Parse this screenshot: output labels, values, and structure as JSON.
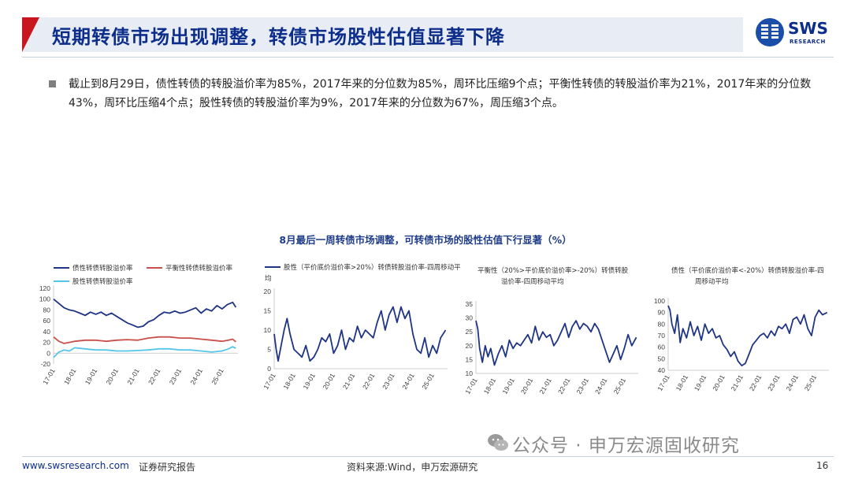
{
  "header": {
    "title": "短期转债市场出现调整，转债市场股性估值显著下降",
    "logo_text": "SWS",
    "logo_sub": "RESEARCH"
  },
  "bullet": {
    "text": "截止到8月29日，债性转债的转股溢价率为85%，2017年来的分位数为85%，周环比压缩9个点；平衡性转债的转股溢价率为21%，2017年来的分位数43%，周环比压缩4个点；股性转债的转股溢价率为9%，2017年来的分位数为67%，周压缩3个点。"
  },
  "chart_section_title": "8月最后一周转债市场调整，可转债市场的股性估值下行显著（%）",
  "colors": {
    "navy": "#1f3584",
    "red": "#c9504a",
    "cyan": "#55c6e8"
  },
  "chart_data": [
    {
      "type": "line",
      "title": "",
      "categories": [
        "17-01",
        "18-01",
        "19-01",
        "20-01",
        "21-01",
        "22-01",
        "23-01",
        "24-01",
        "25-01"
      ],
      "ylim": [
        -20,
        120
      ],
      "yticks": [
        -20,
        0,
        20,
        40,
        60,
        80,
        100,
        120
      ],
      "series": [
        {
          "name": "债性转债转股溢价率",
          "color": "#1f3584",
          "x": [
            2017.0,
            2017.25,
            2017.5,
            2017.75,
            2018.0,
            2018.25,
            2018.5,
            2018.75,
            2019.0,
            2019.25,
            2019.5,
            2019.75,
            2020.0,
            2020.25,
            2020.5,
            2020.75,
            2021.0,
            2021.25,
            2021.5,
            2021.75,
            2022.0,
            2022.25,
            2022.5,
            2022.75,
            2023.0,
            2023.25,
            2023.5,
            2023.75,
            2024.0,
            2024.25,
            2024.5,
            2024.75,
            2025.0,
            2025.25,
            2025.5,
            2025.65
          ],
          "values": [
            100,
            92,
            84,
            80,
            78,
            74,
            70,
            76,
            72,
            76,
            70,
            74,
            68,
            62,
            56,
            52,
            48,
            50,
            58,
            62,
            70,
            76,
            74,
            78,
            74,
            76,
            80,
            84,
            74,
            82,
            78,
            88,
            82,
            90,
            94,
            85
          ]
        },
        {
          "name": "平衡性转债转股溢价率",
          "color": "#c9504a",
          "x": [
            2017.0,
            2017.25,
            2017.5,
            2017.75,
            2018.0,
            2018.5,
            2019.0,
            2019.5,
            2020.0,
            2020.5,
            2021.0,
            2021.5,
            2022.0,
            2022.5,
            2023.0,
            2023.5,
            2024.0,
            2024.5,
            2025.0,
            2025.3,
            2025.5,
            2025.65
          ],
          "values": [
            30,
            22,
            18,
            20,
            22,
            24,
            24,
            22,
            24,
            25,
            24,
            28,
            30,
            30,
            28,
            28,
            26,
            24,
            22,
            24,
            26,
            21
          ]
        },
        {
          "name": "股性转债转股溢价率",
          "color": "#55c6e8",
          "x": [
            2017.0,
            2017.25,
            2017.5,
            2017.75,
            2018.0,
            2018.5,
            2019.0,
            2019.5,
            2020.0,
            2020.5,
            2021.0,
            2021.5,
            2022.0,
            2022.5,
            2023.0,
            2023.5,
            2024.0,
            2024.5,
            2025.0,
            2025.3,
            2025.5,
            2025.65
          ],
          "values": [
            -8,
            2,
            6,
            4,
            10,
            8,
            6,
            6,
            4,
            4,
            5,
            6,
            8,
            8,
            6,
            6,
            4,
            2,
            4,
            8,
            12,
            9
          ]
        }
      ]
    },
    {
      "type": "line",
      "title": "股性（平价底价溢价率>20%）转债转股溢价率-四周移动平均",
      "categories": [
        "17-01",
        "18-01",
        "19-01",
        "20-01",
        "21-01",
        "22-01",
        "23-01",
        "24-01",
        "25-01"
      ],
      "ylim": [
        0,
        20
      ],
      "yticks": [
        0,
        5,
        10,
        15,
        20
      ],
      "series": [
        {
          "name": "股性（平价底价溢价率>20%）转债转股溢价率-四周移动平均",
          "color": "#1f3584",
          "x": [
            2017.0,
            2017.1,
            2017.2,
            2017.35,
            2017.5,
            2017.65,
            2017.8,
            2018.0,
            2018.2,
            2018.4,
            2018.6,
            2018.8,
            2019.0,
            2019.2,
            2019.4,
            2019.6,
            2019.8,
            2020.0,
            2020.2,
            2020.4,
            2020.6,
            2020.8,
            2021.0,
            2021.2,
            2021.4,
            2021.6,
            2021.8,
            2022.0,
            2022.2,
            2022.4,
            2022.6,
            2022.8,
            2023.0,
            2023.2,
            2023.4,
            2023.6,
            2023.8,
            2024.0,
            2024.2,
            2024.4,
            2024.6,
            2024.8,
            2025.0,
            2025.2,
            2025.4,
            2025.65
          ],
          "values": [
            9,
            5,
            2,
            6,
            10,
            13,
            9,
            5,
            4,
            3,
            6,
            2,
            3,
            5,
            8,
            7,
            9,
            4,
            6,
            10,
            5,
            8,
            7,
            11,
            8,
            10,
            9,
            8,
            12,
            15,
            10,
            14,
            16,
            12,
            16,
            13,
            15,
            9,
            5,
            4,
            8,
            3,
            6,
            4,
            8,
            10
          ]
        }
      ]
    },
    {
      "type": "line",
      "title": "平衡性（20%>平价底价溢价率>-20%）转债转股溢价率-四周移动平均",
      "categories": [
        "17-01",
        "18-01",
        "19-01",
        "20-01",
        "21-01",
        "22-01",
        "23-01",
        "24-01",
        "25-01"
      ],
      "ylim": [
        10,
        35
      ],
      "yticks": [
        10,
        15,
        20,
        25,
        30,
        35
      ],
      "series": [
        {
          "name": "平衡性（20%>平价底价溢价率>-20%）转债转股溢价率-四周移动平均",
          "color": "#1f3584",
          "x": [
            2017.0,
            2017.1,
            2017.2,
            2017.35,
            2017.5,
            2017.65,
            2017.8,
            2018.0,
            2018.2,
            2018.4,
            2018.6,
            2018.8,
            2019.0,
            2019.2,
            2019.4,
            2019.6,
            2019.8,
            2020.0,
            2020.2,
            2020.4,
            2020.6,
            2020.8,
            2021.0,
            2021.2,
            2021.4,
            2021.6,
            2021.8,
            2022.0,
            2022.2,
            2022.4,
            2022.6,
            2022.8,
            2023.0,
            2023.2,
            2023.4,
            2023.6,
            2023.8,
            2024.0,
            2024.2,
            2024.4,
            2024.6,
            2024.8,
            2025.0,
            2025.2,
            2025.4,
            2025.65
          ],
          "values": [
            29,
            26,
            19,
            14,
            20,
            16,
            19,
            13,
            17,
            20,
            16,
            22,
            19,
            21,
            20,
            22,
            24,
            21,
            27,
            22,
            25,
            23,
            24,
            20,
            22,
            25,
            28,
            23,
            27,
            29,
            26,
            28,
            27,
            25,
            28,
            26,
            22,
            18,
            14,
            17,
            20,
            15,
            19,
            24,
            20,
            23
          ]
        }
      ]
    },
    {
      "type": "line",
      "title": "债性（平价底价溢价率<-20%）转债转股溢价率-四周移动平均",
      "categories": [
        "17-01",
        "18-01",
        "19-01",
        "20-01",
        "21-01",
        "22-01",
        "23-01",
        "24-01",
        "25-01"
      ],
      "ylim": [
        40,
        100
      ],
      "yticks": [
        40,
        50,
        60,
        70,
        80,
        90,
        100
      ],
      "series": [
        {
          "name": "债性（平价底价溢价率<-20%）转债转股溢价率-四周移动平均",
          "color": "#1f3584",
          "x": [
            2017.0,
            2017.1,
            2017.2,
            2017.35,
            2017.5,
            2017.65,
            2017.8,
            2018.0,
            2018.2,
            2018.4,
            2018.6,
            2018.8,
            2019.0,
            2019.2,
            2019.4,
            2019.6,
            2019.8,
            2020.0,
            2020.2,
            2020.4,
            2020.6,
            2020.8,
            2021.0,
            2021.2,
            2021.4,
            2021.6,
            2021.8,
            2022.0,
            2022.2,
            2022.4,
            2022.6,
            2022.8,
            2023.0,
            2023.2,
            2023.4,
            2023.6,
            2023.8,
            2024.0,
            2024.2,
            2024.4,
            2024.6,
            2024.8,
            2025.0,
            2025.2,
            2025.4,
            2025.65
          ],
          "values": [
            96,
            92,
            80,
            72,
            88,
            64,
            76,
            68,
            82,
            70,
            78,
            66,
            80,
            72,
            76,
            68,
            70,
            62,
            58,
            52,
            56,
            48,
            44,
            46,
            54,
            62,
            66,
            70,
            72,
            68,
            74,
            70,
            78,
            76,
            80,
            72,
            84,
            86,
            80,
            88,
            76,
            70,
            86,
            92,
            88,
            90
          ]
        }
      ]
    }
  ],
  "footer": {
    "url": "www.swsresearch.com",
    "report": "证券研究报告",
    "source": "资料来源:Wind，申万宏源研究",
    "page": "16",
    "watermark": "公众号 · 申万宏源固收研究"
  }
}
